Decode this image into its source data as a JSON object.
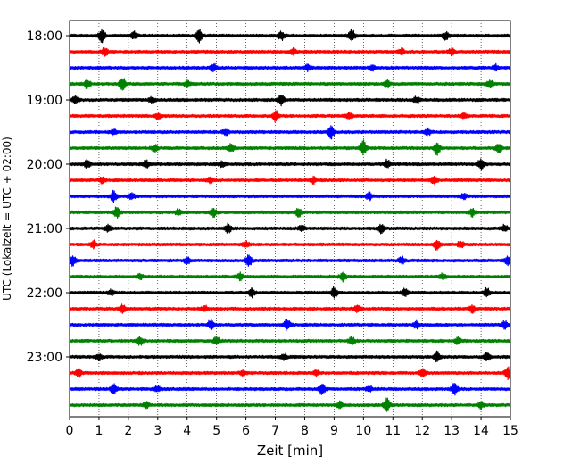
{
  "chart_data": {
    "type": "line",
    "title": "",
    "xlabel": "Zeit  [min]",
    "ylabel": "UTC (Lokalzeit = UTC + 02:00)",
    "xlim": [
      0,
      15
    ],
    "x_ticks": [
      0,
      1,
      2,
      3,
      4,
      5,
      6,
      7,
      8,
      9,
      10,
      11,
      12,
      13,
      14,
      15
    ],
    "x_tick_labels": [
      "0",
      "1",
      "2",
      "3",
      "4",
      "5",
      "6",
      "7",
      "8",
      "9",
      "10",
      "11",
      "12",
      "13",
      "14",
      "15"
    ],
    "grid": "vertical-dotted",
    "trace_interval_min": 15,
    "trace_start": "17:45",
    "trace_end": "23:45",
    "y_ticks": [
      {
        "label": "18:00",
        "trace_index": 0
      },
      {
        "label": "19:00",
        "trace_index": 4
      },
      {
        "label": "20:00",
        "trace_index": 8
      },
      {
        "label": "21:00",
        "trace_index": 12
      },
      {
        "label": "22:00",
        "trace_index": 16
      },
      {
        "label": "23:00",
        "trace_index": 20
      }
    ],
    "trace_colors": [
      "#000000",
      "#ff0000",
      "#0000ff",
      "#008000"
    ],
    "trace_count": 24,
    "traces": [
      {
        "bursts": [
          [
            1.1,
            1.0
          ],
          [
            4.4,
            0.9
          ],
          [
            9.6,
            0.9
          ],
          [
            7.2,
            0.6
          ],
          [
            2.2,
            0.5
          ],
          [
            12.8,
            0.5
          ]
        ]
      },
      {
        "bursts": [
          [
            1.2,
            0.6
          ],
          [
            7.6,
            0.5
          ],
          [
            11.3,
            0.4
          ],
          [
            13.0,
            0.4
          ]
        ]
      },
      {
        "bursts": [
          [
            4.9,
            0.6
          ],
          [
            8.1,
            0.5
          ],
          [
            10.3,
            0.4
          ],
          [
            14.5,
            0.4
          ]
        ]
      },
      {
        "bursts": [
          [
            1.8,
            0.9
          ],
          [
            0.6,
            0.6
          ],
          [
            4.0,
            0.4
          ],
          [
            10.8,
            0.5
          ],
          [
            14.3,
            0.5
          ]
        ]
      },
      {
        "bursts": [
          [
            0.2,
            0.5
          ],
          [
            7.2,
            0.7
          ],
          [
            11.8,
            0.4
          ],
          [
            2.8,
            0.4
          ]
        ]
      },
      {
        "bursts": [
          [
            7.0,
            0.8
          ],
          [
            9.5,
            0.5
          ],
          [
            3.0,
            0.4
          ],
          [
            13.4,
            0.4
          ]
        ]
      },
      {
        "bursts": [
          [
            8.9,
            0.9
          ],
          [
            1.5,
            0.4
          ],
          [
            12.2,
            0.4
          ],
          [
            5.3,
            0.4
          ]
        ]
      },
      {
        "bursts": [
          [
            10.0,
            1.0
          ],
          [
            12.5,
            0.9
          ],
          [
            5.5,
            0.6
          ],
          [
            14.6,
            0.6
          ],
          [
            2.9,
            0.4
          ]
        ]
      },
      {
        "bursts": [
          [
            0.6,
            0.6
          ],
          [
            2.6,
            0.5
          ],
          [
            10.8,
            0.6
          ],
          [
            14.0,
            0.8
          ],
          [
            5.2,
            0.4
          ]
        ]
      },
      {
        "bursts": [
          [
            12.4,
            0.6
          ],
          [
            4.8,
            0.4
          ],
          [
            8.3,
            0.4
          ],
          [
            1.1,
            0.4
          ]
        ]
      },
      {
        "bursts": [
          [
            1.5,
            0.7
          ],
          [
            2.1,
            0.5
          ],
          [
            10.2,
            0.5
          ],
          [
            13.4,
            0.4
          ]
        ]
      },
      {
        "bursts": [
          [
            1.6,
            0.7
          ],
          [
            4.9,
            0.6
          ],
          [
            7.8,
            0.6
          ],
          [
            13.7,
            0.5
          ],
          [
            3.7,
            0.4
          ]
        ]
      },
      {
        "bursts": [
          [
            1.3,
            0.5
          ],
          [
            5.4,
            0.6
          ],
          [
            10.6,
            0.6
          ],
          [
            14.8,
            0.5
          ],
          [
            7.9,
            0.4
          ]
        ]
      },
      {
        "bursts": [
          [
            0.8,
            0.5
          ],
          [
            12.5,
            0.7
          ],
          [
            13.3,
            0.5
          ],
          [
            6.0,
            0.4
          ]
        ]
      },
      {
        "bursts": [
          [
            6.1,
            0.9
          ],
          [
            0.1,
            0.7
          ],
          [
            4.0,
            0.5
          ],
          [
            11.3,
            0.5
          ],
          [
            14.9,
            0.6
          ]
        ]
      },
      {
        "bursts": [
          [
            9.3,
            0.6
          ],
          [
            5.8,
            0.5
          ],
          [
            2.4,
            0.4
          ],
          [
            12.7,
            0.4
          ]
        ]
      },
      {
        "bursts": [
          [
            6.2,
            0.6
          ],
          [
            9.0,
            0.7
          ],
          [
            14.2,
            0.6
          ],
          [
            11.4,
            0.5
          ],
          [
            1.4,
            0.4
          ]
        ]
      },
      {
        "bursts": [
          [
            1.8,
            0.5
          ],
          [
            9.8,
            0.5
          ],
          [
            13.7,
            0.5
          ],
          [
            4.6,
            0.4
          ]
        ]
      },
      {
        "bursts": [
          [
            4.8,
            0.7
          ],
          [
            7.4,
            0.9
          ],
          [
            11.8,
            0.5
          ],
          [
            14.8,
            0.5
          ]
        ]
      },
      {
        "bursts": [
          [
            2.4,
            0.6
          ],
          [
            5.0,
            0.5
          ],
          [
            9.6,
            0.5
          ],
          [
            13.2,
            0.4
          ]
        ]
      },
      {
        "bursts": [
          [
            12.5,
            0.7
          ],
          [
            14.2,
            0.6
          ],
          [
            1.0,
            0.4
          ],
          [
            7.3,
            0.4
          ]
        ]
      },
      {
        "bursts": [
          [
            0.3,
            0.6
          ],
          [
            14.9,
            0.8
          ],
          [
            12.0,
            0.5
          ],
          [
            8.4,
            0.4
          ],
          [
            5.9,
            0.4
          ]
        ]
      },
      {
        "bursts": [
          [
            1.5,
            0.7
          ],
          [
            8.6,
            0.8
          ],
          [
            13.1,
            0.8
          ],
          [
            3.0,
            0.4
          ],
          [
            10.2,
            0.4
          ]
        ]
      },
      {
        "bursts": [
          [
            10.8,
            0.9
          ],
          [
            9.2,
            0.5
          ],
          [
            2.6,
            0.4
          ],
          [
            14.0,
            0.4
          ]
        ]
      }
    ]
  }
}
